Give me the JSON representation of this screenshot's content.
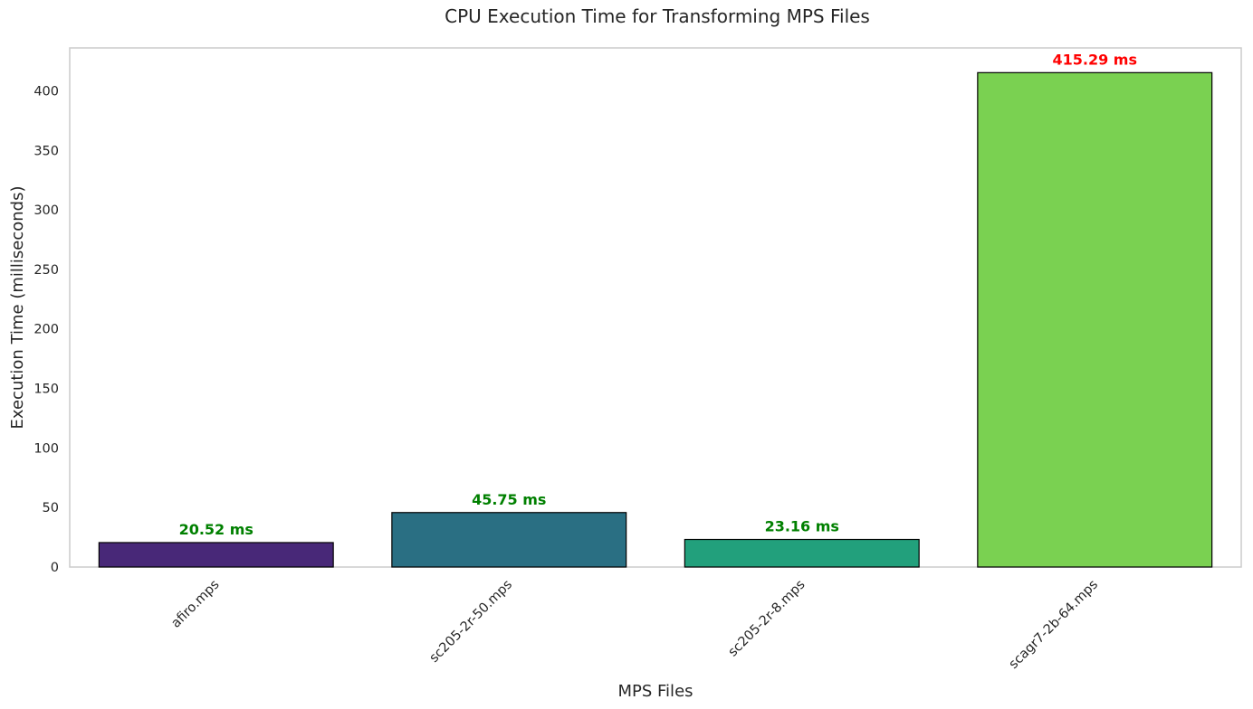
{
  "chart_data": {
    "type": "bar",
    "title": "CPU Execution Time for Transforming MPS Files",
    "xlabel": "MPS Files",
    "ylabel": "Execution Time (milliseconds)",
    "categories": [
      "afiro.mps",
      "sc205-2r-50.mps",
      "sc205-2r-8.mps",
      "scagr7-2b-64.mps"
    ],
    "values": [
      20.52,
      45.75,
      23.16,
      415.29
    ],
    "data_labels": [
      "20.52 ms",
      "45.75 ms",
      "23.16 ms",
      "415.29 ms"
    ],
    "bar_colors": [
      "#482878",
      "#2a6f83",
      "#22a07c",
      "#7ad151"
    ],
    "label_colors": [
      "#008000",
      "#008000",
      "#008000",
      "#ff0000"
    ],
    "ylim": [
      0,
      436.05
    ],
    "yticks": [
      0,
      50,
      100,
      150,
      200,
      250,
      300,
      350,
      400
    ],
    "grid": false,
    "legend": "none"
  }
}
